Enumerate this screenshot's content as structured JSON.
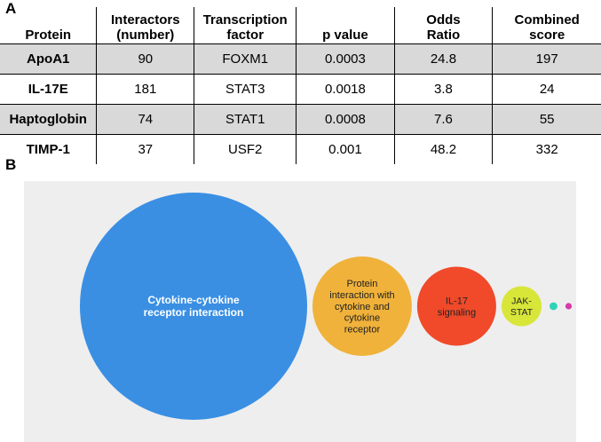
{
  "panel_a": {
    "label": "A",
    "headers": [
      [
        "Protein"
      ],
      [
        "Interactors",
        "(number)"
      ],
      [
        "Transcription",
        "factor"
      ],
      [
        "p value"
      ],
      [
        "Odds",
        "Ratio"
      ],
      [
        "Combined",
        "score"
      ]
    ],
    "rows": [
      {
        "protein": "ApoA1",
        "interactors": "90",
        "tf": "FOXM1",
        "p": "0.0003",
        "odds": "24.8",
        "score": "197"
      },
      {
        "protein": "IL-17E",
        "interactors": "181",
        "tf": "STAT3",
        "p": "0.0018",
        "odds": "3.8",
        "score": "24"
      },
      {
        "protein": "Haptoglobin",
        "interactors": "74",
        "tf": "STAT1",
        "p": "0.0008",
        "odds": "7.6",
        "score": "55"
      },
      {
        "protein": "TIMP-1",
        "interactors": "37",
        "tf": "USF2",
        "p": "0.001",
        "odds": "48.2",
        "score": "332"
      }
    ],
    "colors": {
      "shaded_row": "#d9d9d9"
    }
  },
  "panel_b": {
    "label": "B",
    "background": "#eeeeee",
    "bubbles": [
      {
        "name": "cytokine-cytokine-receptor",
        "lines": [
          "Cytokine-cytokine",
          "receptor interaction"
        ],
        "color": "#3a8fe3",
        "text_color": "#ffffff",
        "value": 1.0
      },
      {
        "name": "protein-interaction-cytokine",
        "lines": [
          "Protein",
          "interaction with",
          "cytokine and",
          "cytokine",
          "receptor"
        ],
        "color": "#f0b23a",
        "text_color": "#222222",
        "value": 0.191
      },
      {
        "name": "il-17-signaling",
        "lines": [
          "IL-17",
          "signaling"
        ],
        "color": "#f04a2a",
        "text_color": "#222222",
        "value": 0.121
      },
      {
        "name": "jak-stat",
        "lines": [
          "JAK-",
          "STAT"
        ],
        "color": "#d8e63a",
        "text_color": "#222222",
        "value": 0.031
      },
      {
        "name": "dot-1",
        "lines": [],
        "color": "#2ed3b8",
        "text_color": "#222222",
        "value": 0.0012
      },
      {
        "name": "dot-2",
        "lines": [],
        "color": "#d63aa8",
        "text_color": "#222222",
        "value": 0.0008
      },
      {
        "name": "dot-3",
        "lines": [],
        "color": "#3a8fe3",
        "text_color": "#222222",
        "value": 0.00025
      },
      {
        "name": "dot-4",
        "lines": [],
        "color": "#f0b23a",
        "text_color": "#222222",
        "value": 0.00012
      },
      {
        "name": "dot-5",
        "lines": [],
        "color": "#f04a2a",
        "text_color": "#222222",
        "value": 9e-05
      },
      {
        "name": "dot-6",
        "lines": [],
        "color": "#d8e63a",
        "text_color": "#222222",
        "value": 6e-05
      }
    ]
  }
}
